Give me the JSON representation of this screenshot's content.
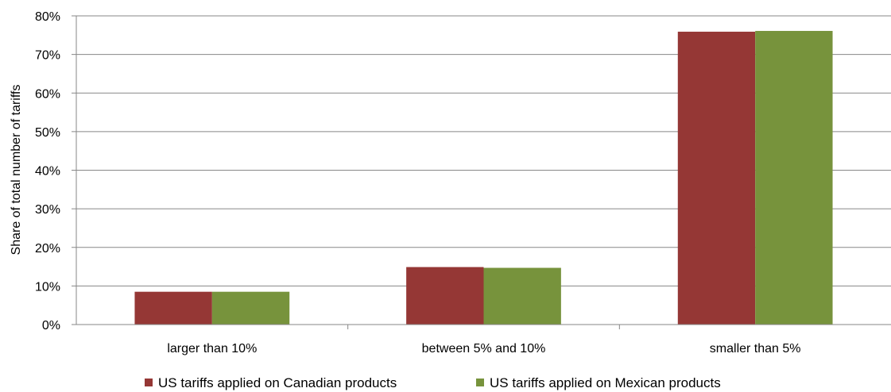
{
  "chart_data": {
    "type": "bar",
    "title": "",
    "xlabel": "",
    "ylabel": "Share of total number of tariffs",
    "categories": [
      "larger than 10%",
      "between 5% and 10%",
      "smaller than 5%"
    ],
    "series": [
      {
        "name": "US tariffs applied on Canadian products",
        "color": "#953735",
        "values": [
          8.5,
          14.9,
          75.9
        ]
      },
      {
        "name": "US tariffs applied on Mexican products",
        "color": "#77933c",
        "values": [
          8.5,
          14.7,
          76.1
        ]
      }
    ],
    "ylim": [
      0,
      80
    ],
    "yticks": [
      0,
      10,
      20,
      30,
      40,
      50,
      60,
      70,
      80
    ],
    "ytick_format": "percent",
    "grid": true,
    "legend": "bottom"
  }
}
